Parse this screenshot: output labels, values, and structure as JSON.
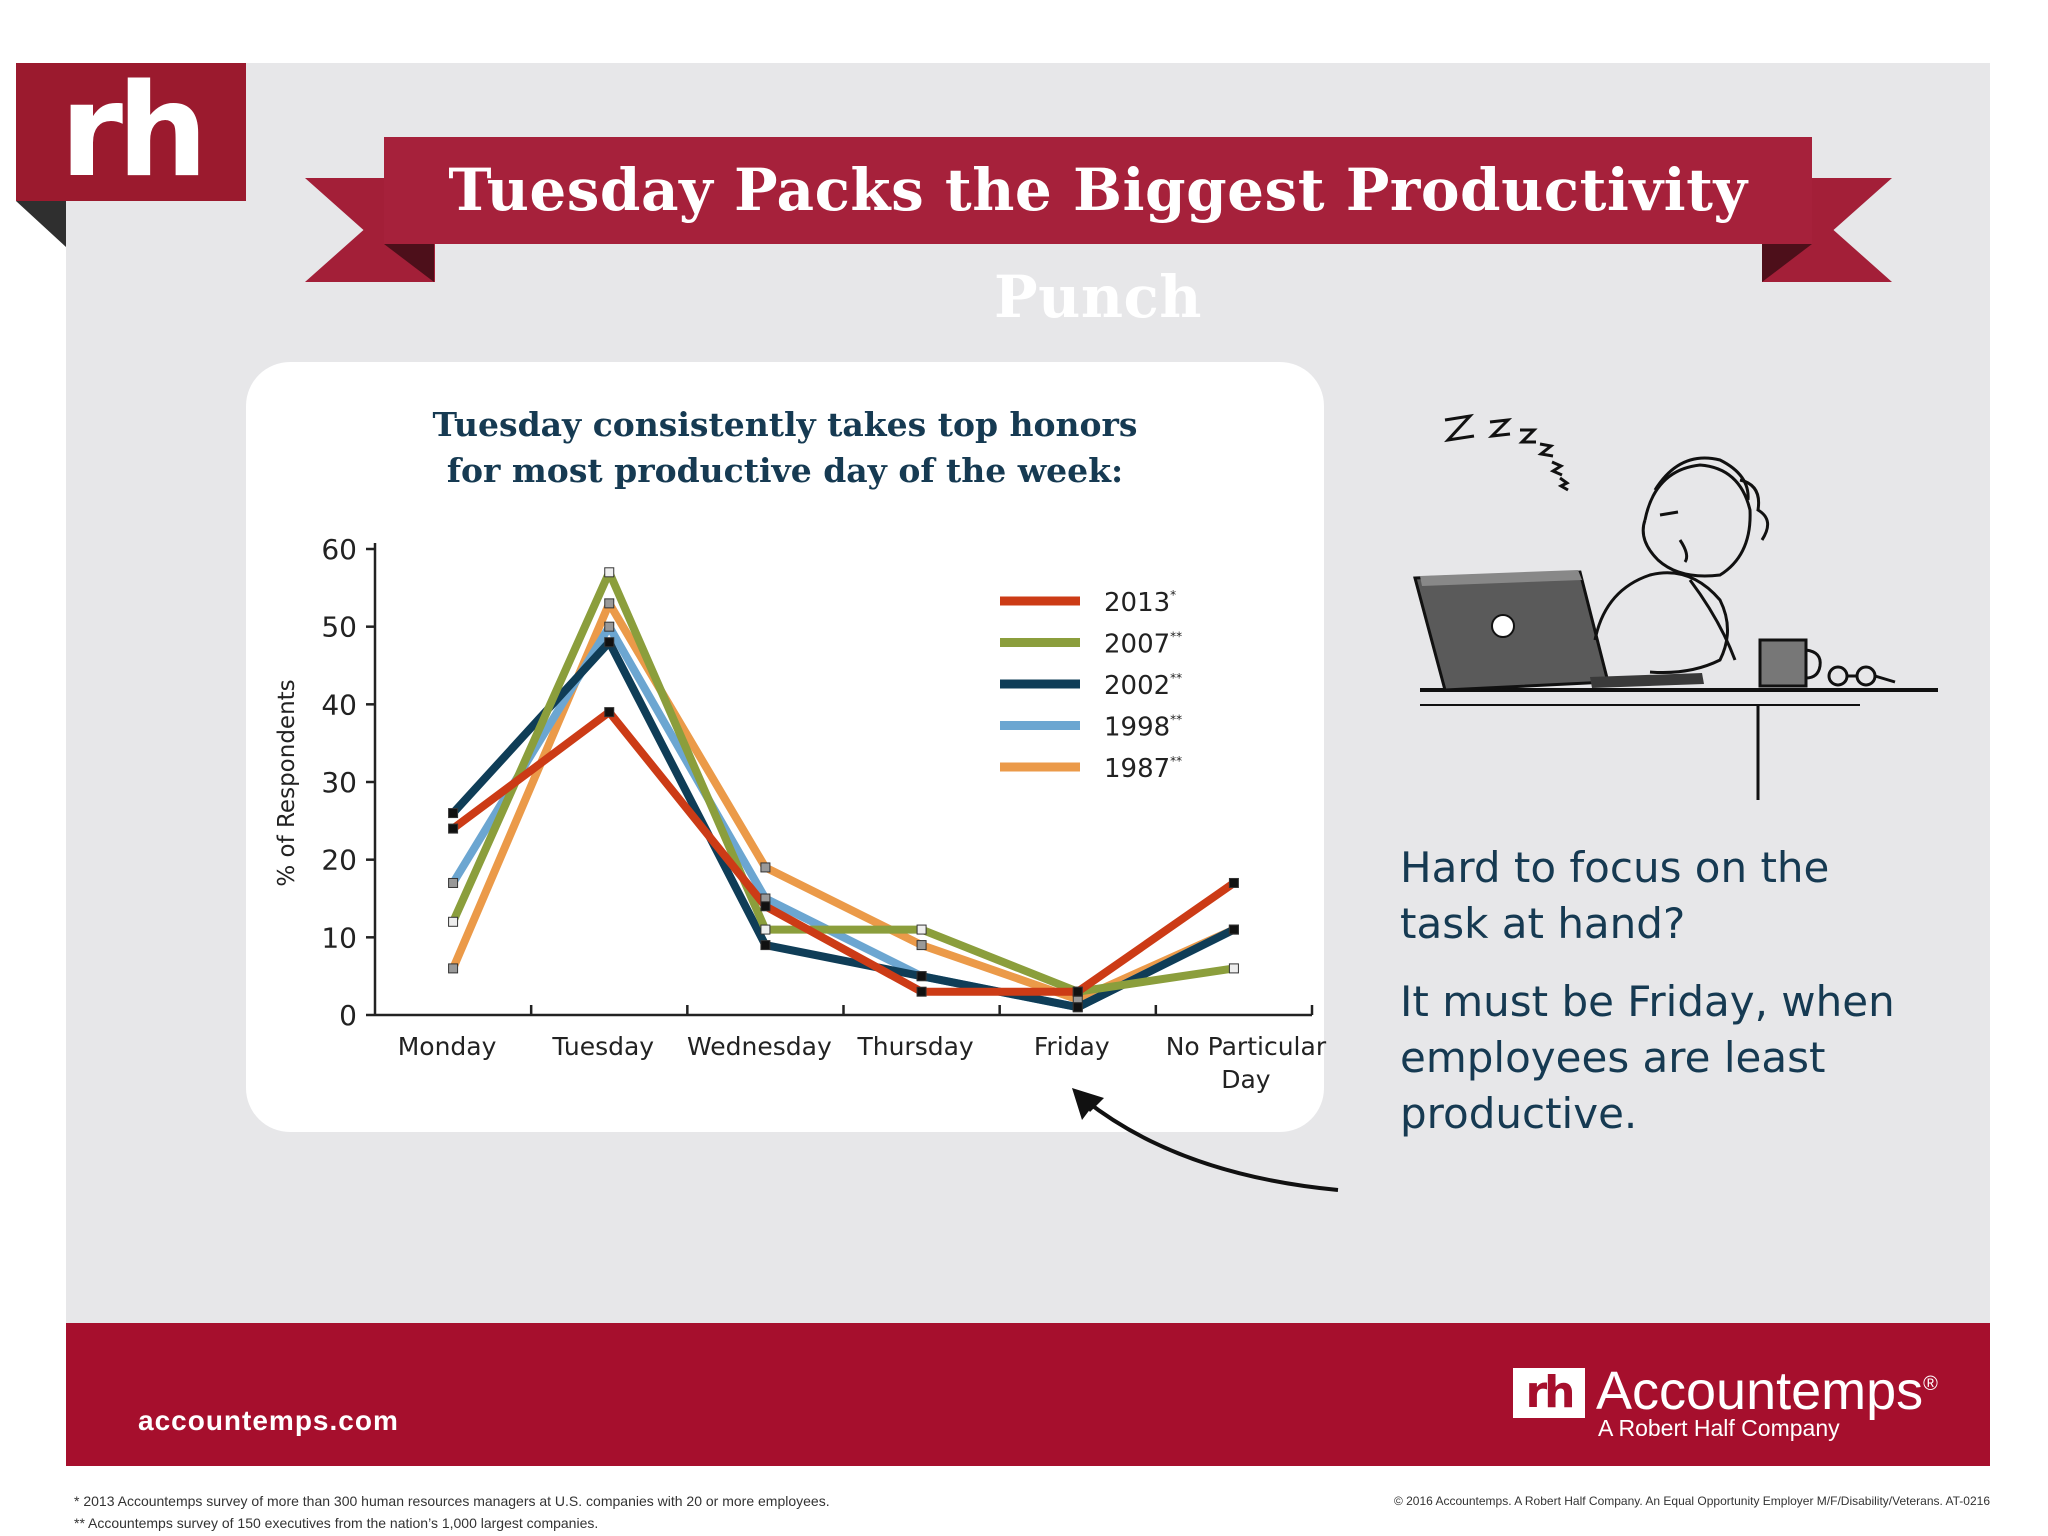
{
  "logo_text": "rh",
  "title": "Tuesday Packs the Biggest Productivity Punch",
  "chart_title_line1": "Tuesday consistently takes top honors",
  "chart_title_line2": "for most productive day of the week:",
  "side_text": {
    "question": "Hard to focus on the task at hand?",
    "answer": "It must be Friday, when employees are least productive."
  },
  "footer": {
    "url": "accountemps.com",
    "brand_mark": "rh",
    "brand_name": "Accountemps",
    "brand_registered": "®",
    "tagline": "A Robert Half Company"
  },
  "footnotes": [
    "*  2013 Accountemps survey of more than 300 human resources managers at U.S. companies with 20 or more employees.",
    "**  Accountemps survey of 150 executives from the nation’s 1,000 largest companies."
  ],
  "copyright": "© 2016 Accountemps. A Robert Half Company. An Equal Opportunity Employer M/F/Disability/Veterans. AT-0216",
  "illustration_icon": "sleeping-worker-illustration",
  "chart_data": {
    "type": "line",
    "ylabel": "% of Respondents",
    "xlabel": "",
    "ylim": [
      0,
      60
    ],
    "yticks": [
      0,
      10,
      20,
      30,
      40,
      50,
      60
    ],
    "categories": [
      "Monday",
      "Tuesday",
      "Wednesday",
      "Thursday",
      "Friday",
      "No Particular Day"
    ],
    "legend_position": "top-right",
    "series": [
      {
        "name": "2013",
        "marker": "*",
        "color": "#cc3b16",
        "values": [
          24,
          39,
          14,
          3,
          3,
          17
        ]
      },
      {
        "name": "2007",
        "marker": "**",
        "color": "#8b9e3c",
        "values": [
          12,
          57,
          11,
          11,
          3,
          6
        ]
      },
      {
        "name": "2002",
        "marker": "**",
        "color": "#0f3d57",
        "values": [
          26,
          48,
          9,
          5,
          1,
          11
        ]
      },
      {
        "name": "1998",
        "marker": "**",
        "color": "#6ca6d1",
        "values": [
          17,
          50,
          15,
          5,
          1,
          11
        ]
      },
      {
        "name": "1987",
        "marker": "**",
        "color": "#eb9a49",
        "values": [
          6,
          53,
          19,
          9,
          2,
          11
        ]
      }
    ]
  }
}
